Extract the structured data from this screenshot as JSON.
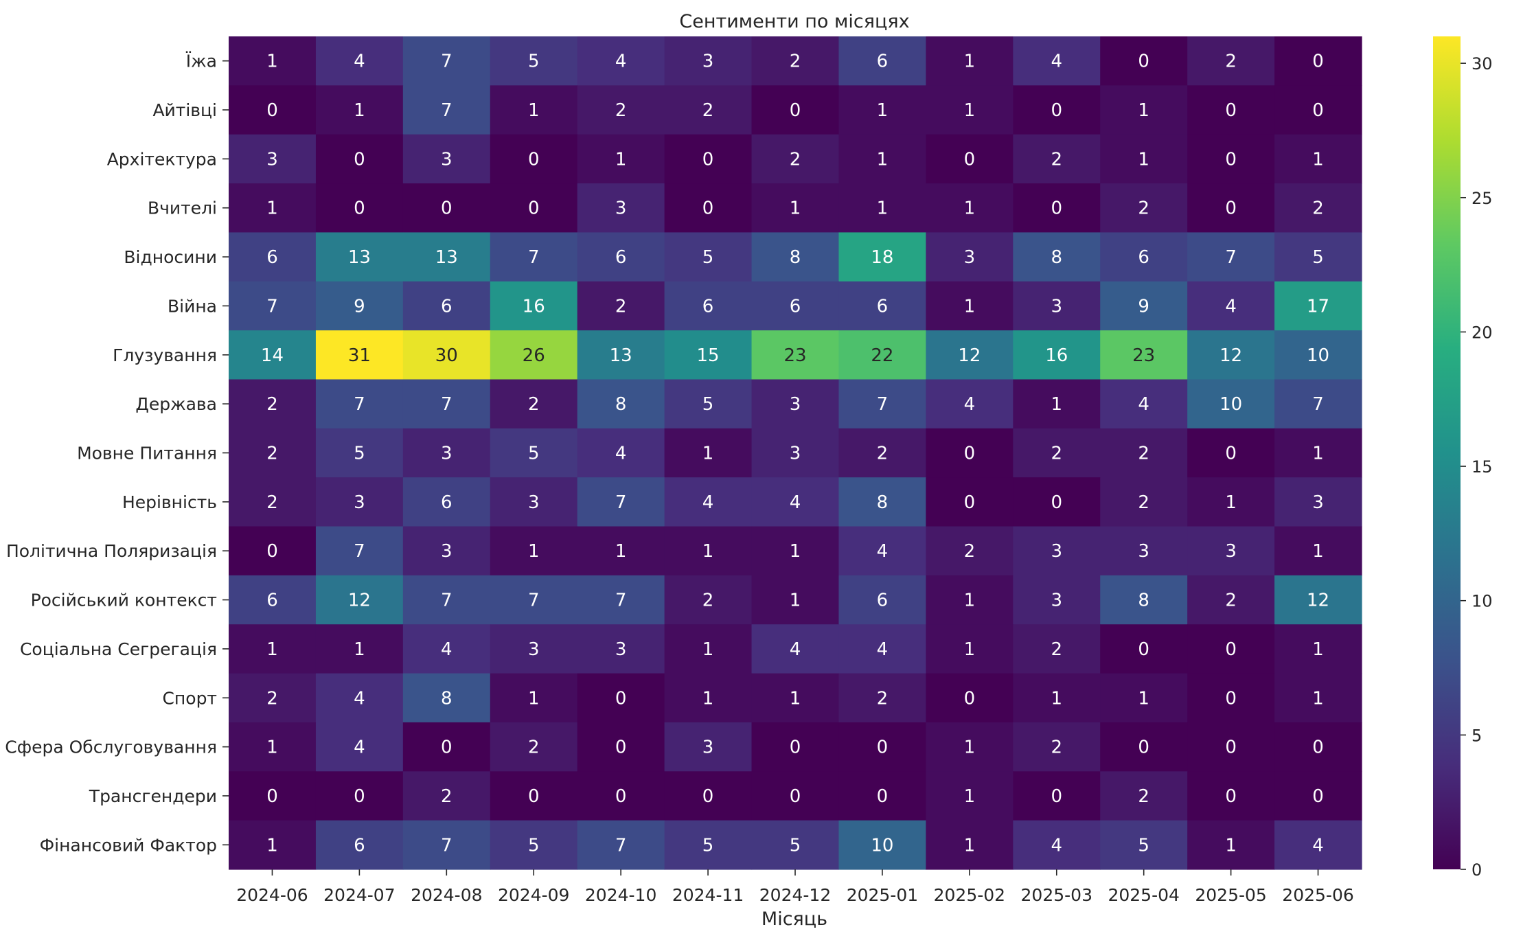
{
  "chart_data": {
    "type": "heatmap",
    "title": "Сентименти по місяцях",
    "xlabel": "Місяць",
    "ylabel": "",
    "colormap": "viridis",
    "vmin": 0,
    "vmax": 31,
    "colorbar_ticks": [
      0,
      5,
      10,
      15,
      20,
      25,
      30
    ],
    "x": [
      "2024-06",
      "2024-07",
      "2024-08",
      "2024-09",
      "2024-10",
      "2024-11",
      "2024-12",
      "2025-01",
      "2025-02",
      "2025-03",
      "2025-04",
      "2025-05",
      "2025-06"
    ],
    "y": [
      "Їжа",
      "Айтівці",
      "Архітектура",
      "Вчителі",
      "Відносини",
      "Війна",
      "Глузування",
      "Держава",
      "Мовне Питання",
      "Нерівність",
      "Політична Поляризація",
      "Російський контекст",
      "Соціальна Сегрегація",
      "Спорт",
      "Сфера Обслуговування",
      "Трансгендери",
      "Фінансовий Фактор"
    ],
    "values": [
      [
        1,
        4,
        7,
        5,
        4,
        3,
        2,
        6,
        1,
        4,
        0,
        2,
        0
      ],
      [
        0,
        1,
        7,
        1,
        2,
        2,
        0,
        1,
        1,
        0,
        1,
        0,
        0
      ],
      [
        3,
        0,
        3,
        0,
        1,
        0,
        2,
        1,
        0,
        2,
        1,
        0,
        1
      ],
      [
        1,
        0,
        0,
        0,
        3,
        0,
        1,
        1,
        1,
        0,
        2,
        0,
        2
      ],
      [
        6,
        13,
        13,
        7,
        6,
        5,
        8,
        18,
        3,
        8,
        6,
        7,
        5
      ],
      [
        7,
        9,
        6,
        16,
        2,
        6,
        6,
        6,
        1,
        3,
        9,
        4,
        17
      ],
      [
        14,
        31,
        30,
        26,
        13,
        15,
        23,
        22,
        12,
        16,
        23,
        12,
        10
      ],
      [
        2,
        7,
        7,
        2,
        8,
        5,
        3,
        7,
        4,
        1,
        4,
        10,
        7
      ],
      [
        2,
        5,
        3,
        5,
        4,
        1,
        3,
        2,
        0,
        2,
        2,
        0,
        1
      ],
      [
        2,
        3,
        6,
        3,
        7,
        4,
        4,
        8,
        0,
        0,
        2,
        1,
        3
      ],
      [
        0,
        7,
        3,
        1,
        1,
        1,
        1,
        4,
        2,
        3,
        3,
        3,
        1
      ],
      [
        6,
        12,
        7,
        7,
        7,
        2,
        1,
        6,
        1,
        3,
        8,
        2,
        12
      ],
      [
        1,
        1,
        4,
        3,
        3,
        1,
        4,
        4,
        1,
        2,
        0,
        0,
        1
      ],
      [
        2,
        4,
        8,
        1,
        0,
        1,
        1,
        2,
        0,
        1,
        1,
        0,
        1
      ],
      [
        1,
        4,
        0,
        2,
        0,
        3,
        0,
        0,
        1,
        2,
        0,
        0,
        0
      ],
      [
        0,
        0,
        2,
        0,
        0,
        0,
        0,
        0,
        1,
        0,
        2,
        0,
        0
      ],
      [
        1,
        6,
        7,
        5,
        7,
        5,
        5,
        10,
        1,
        4,
        5,
        1,
        4
      ]
    ]
  }
}
